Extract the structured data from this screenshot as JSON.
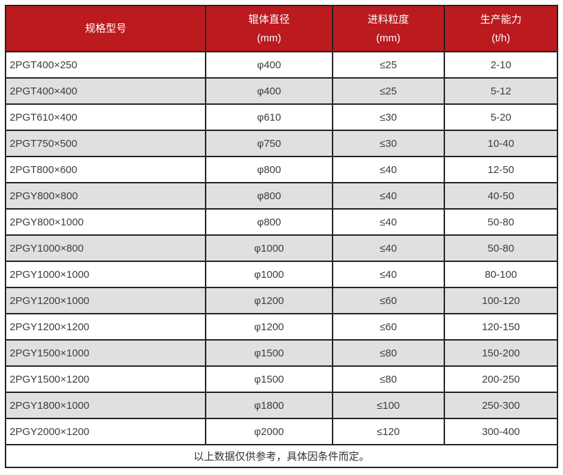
{
  "colors": {
    "header_bg": "#bb1a1f",
    "header_text": "#ffffff",
    "row_bg": "#ffffff",
    "row_alt_bg": "#e0e0e0",
    "border": "#222222",
    "body_text": "#3d3d3d"
  },
  "table": {
    "headers": [
      {
        "title": "规格型号",
        "unit": ""
      },
      {
        "title": "辊体直径",
        "unit": "(mm)"
      },
      {
        "title": "进料粒度",
        "unit": "(mm)"
      },
      {
        "title": "生产能力",
        "unit": "(t/h)"
      }
    ],
    "rows": [
      [
        "2PGT400×250",
        "φ400",
        "≤25",
        "2-10"
      ],
      [
        "2PGT400×400",
        "φ400",
        "≤25",
        "5-12"
      ],
      [
        "2PGT610×400",
        "φ610",
        "≤30",
        "5-20"
      ],
      [
        "2PGT750×500",
        "φ750",
        "≤30",
        "10-40"
      ],
      [
        "2PGT800×600",
        "φ800",
        "≤40",
        "12-50"
      ],
      [
        "2PGY800×800",
        "φ800",
        "≤40",
        "40-50"
      ],
      [
        "2PGY800×1000",
        "φ800",
        "≤40",
        "50-80"
      ],
      [
        "2PGY1000×800",
        "φ1000",
        "≤40",
        "50-80"
      ],
      [
        "2PGY1000×1000",
        "φ1000",
        "≤40",
        "80-100"
      ],
      [
        "2PGY1200×1000",
        "φ1200",
        "≤60",
        "100-120"
      ],
      [
        "2PGY1200×1200",
        "φ1200",
        "≤60",
        "120-150"
      ],
      [
        "2PGY1500×1000",
        "φ1500",
        "≤80",
        "150-200"
      ],
      [
        "2PGY1500×1200",
        "φ1500",
        "≤80",
        "200-250"
      ],
      [
        "2PGY1800×1000",
        "φ1800",
        "≤100",
        "250-300"
      ],
      [
        "2PGY2000×1200",
        "φ2000",
        "≤120",
        "300-400"
      ]
    ],
    "cell_names": [
      "cell-model",
      "cell-roller-diameter",
      "cell-feed-size",
      "cell-capacity"
    ],
    "footnote": "以上数据仅供参考，具体因条件而定。"
  }
}
